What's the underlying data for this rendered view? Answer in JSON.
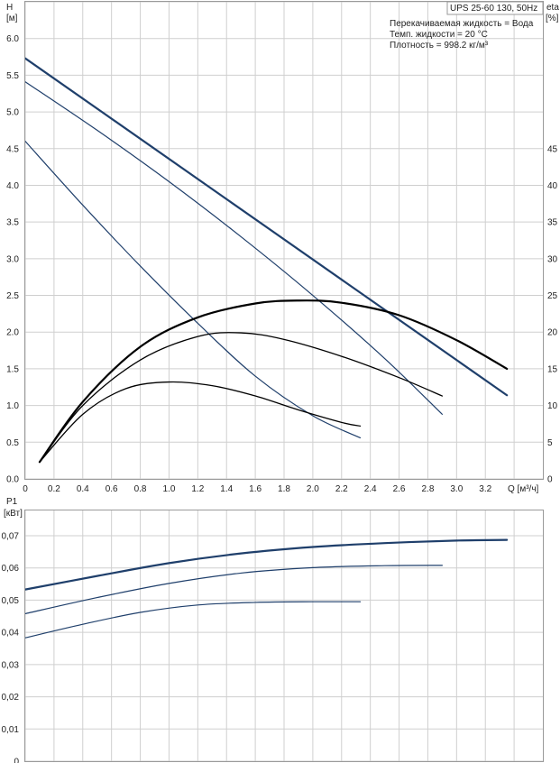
{
  "chart_data": [
    {
      "type": "line",
      "title": "UPS 25-60 130, 50Hz",
      "annotations": [
        "Перекачиваемая жидкость = Вода",
        "Темп. жидкости = 20 °C",
        "Плотность = 998.2 кг/м³"
      ],
      "xlabel": "Q [м³/ч]",
      "ylabel": [
        "H",
        "[м]"
      ],
      "ylabel_right": [
        "eta",
        "[%]"
      ],
      "xlim": [
        0,
        3.6
      ],
      "ylim": [
        0,
        6.5
      ],
      "ylim_right": [
        0,
        65
      ],
      "x_ticks": [
        "0",
        "0.2",
        "0.4",
        "0.6",
        "0.8",
        "1.0",
        "1.2",
        "1.4",
        "1.6",
        "1.8",
        "2.0",
        "2.2",
        "2.4",
        "2.6",
        "2.8",
        "3.0",
        "3.2"
      ],
      "y_ticks": [
        "0.0",
        "0.5",
        "1.0",
        "1.5",
        "2.0",
        "2.5",
        "3.0",
        "3.5",
        "4.0",
        "4.5",
        "5.0",
        "5.5",
        "6.0"
      ],
      "y_ticks_right": [
        "0",
        "5",
        "10",
        "15",
        "20",
        "25",
        "30",
        "35",
        "40",
        "45"
      ],
      "grid": true,
      "series": [
        {
          "axis": "left",
          "color": "#1f3f6b",
          "width": 2.2,
          "x": [
            0,
            3.35
          ],
          "y": [
            5.73,
            1.14
          ]
        },
        {
          "axis": "left",
          "color": "#1f3f6b",
          "width": 1.2,
          "x": [
            0,
            0.5,
            1.0,
            1.5,
            2.0,
            2.5,
            2.9
          ],
          "y": [
            5.41,
            4.75,
            4.05,
            3.3,
            2.5,
            1.64,
            0.88
          ]
        },
        {
          "axis": "left",
          "color": "#1f3f6b",
          "width": 1.2,
          "x": [
            0,
            0.4,
            0.8,
            1.2,
            1.6,
            2.0,
            2.33
          ],
          "y": [
            4.6,
            3.73,
            2.9,
            2.12,
            1.4,
            0.86,
            0.56
          ]
        },
        {
          "axis": "right",
          "color": "#000000",
          "width": 2.2,
          "x": [
            0.1,
            0.4,
            0.8,
            1.2,
            1.6,
            1.9,
            2.2,
            2.6,
            3.0,
            3.35
          ],
          "y": [
            2.3,
            10.5,
            18.0,
            22.0,
            23.9,
            24.3,
            24.0,
            22.3,
            18.9,
            15.0
          ]
        },
        {
          "axis": "right",
          "color": "#000000",
          "width": 1.3,
          "x": [
            0.1,
            0.4,
            0.8,
            1.2,
            1.5,
            1.8,
            2.2,
            2.6,
            2.9
          ],
          "y": [
            2.3,
            10.0,
            16.2,
            19.4,
            19.9,
            19.0,
            16.7,
            13.8,
            11.3
          ]
        },
        {
          "axis": "right",
          "color": "#000000",
          "width": 1.3,
          "x": [
            0.1,
            0.4,
            0.7,
            1.0,
            1.3,
            1.6,
            1.9,
            2.2,
            2.33
          ],
          "y": [
            2.3,
            8.8,
            12.3,
            13.2,
            12.7,
            11.3,
            9.4,
            7.7,
            7.2
          ]
        }
      ]
    },
    {
      "type": "line",
      "ylabel": [
        "P1",
        "[кВт]"
      ],
      "xlim": [
        0,
        3.6
      ],
      "ylim": [
        0,
        0.07
      ],
      "y_ticks": [
        "0",
        "0,01",
        "0,02",
        "0,03",
        "0,04",
        "0,05",
        "0,06",
        "0,07"
      ],
      "grid": true,
      "series": [
        {
          "color": "#1f3f6b",
          "width": 2.2,
          "x": [
            0,
            0.5,
            1.0,
            1.5,
            2.0,
            2.5,
            3.0,
            3.35
          ],
          "y": [
            0.0533,
            0.0575,
            0.0615,
            0.0645,
            0.0665,
            0.0677,
            0.0685,
            0.0687
          ]
        },
        {
          "color": "#1f3f6b",
          "width": 1.2,
          "x": [
            0,
            0.5,
            1.0,
            1.5,
            2.0,
            2.5,
            2.9
          ],
          "y": [
            0.0458,
            0.0508,
            0.0552,
            0.0584,
            0.0601,
            0.0607,
            0.0608
          ]
        },
        {
          "color": "#1f3f6b",
          "width": 1.2,
          "x": [
            0,
            0.4,
            0.8,
            1.2,
            1.6,
            2.0,
            2.33
          ],
          "y": [
            0.0383,
            0.0425,
            0.0462,
            0.0485,
            0.0493,
            0.0495,
            0.0495
          ]
        }
      ]
    }
  ]
}
